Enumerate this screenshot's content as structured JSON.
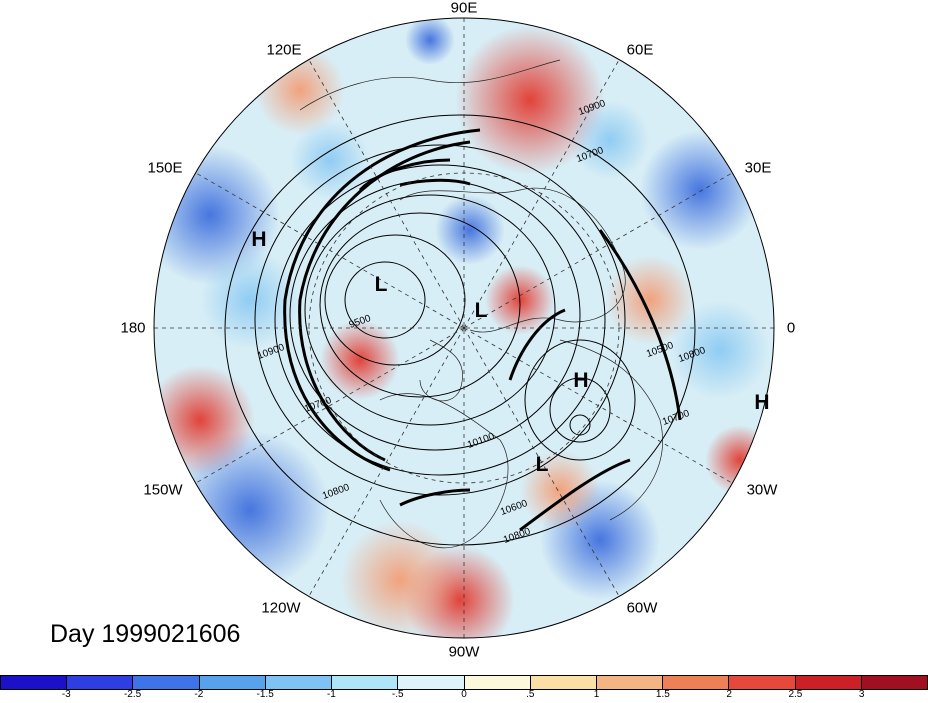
{
  "title": "Day 1999021606",
  "longitude_labels": [
    {
      "text": "90E",
      "lon": 90
    },
    {
      "text": "60E",
      "lon": 60
    },
    {
      "text": "30E",
      "lon": 30
    },
    {
      "text": "0",
      "lon": 0
    },
    {
      "text": "30W",
      "lon": -30
    },
    {
      "text": "60W",
      "lon": -60
    },
    {
      "text": "90W",
      "lon": -90
    },
    {
      "text": "120W",
      "lon": -120
    },
    {
      "text": "150W",
      "lon": -150
    },
    {
      "text": "180",
      "lon": 180
    },
    {
      "text": "150E",
      "lon": 150
    },
    {
      "text": "120E",
      "lon": 120
    }
  ],
  "pressure_systems": [
    {
      "type": "H",
      "name": "high-150e"
    },
    {
      "type": "L",
      "name": "low-siberia"
    },
    {
      "type": "L",
      "name": "low-pole"
    },
    {
      "type": "H",
      "name": "high-atlantic"
    },
    {
      "type": "L",
      "name": "low-labrador"
    },
    {
      "type": "H",
      "name": "high-east-atlantic"
    }
  ],
  "contour_labels": [
    "10900",
    "10700",
    "10500",
    "10800",
    "10700",
    "9500",
    "10900",
    "10100",
    "10600",
    "10800",
    "10800",
    "10700"
  ],
  "colorbar": {
    "colors": [
      "#1c10c8",
      "#2e3ee0",
      "#3f74e8",
      "#58a2ec",
      "#7ec3f4",
      "#aee6f8",
      "#dcf4fa",
      "#fcf8dc",
      "#fae0a4",
      "#f4b484",
      "#ee8058",
      "#e6483c",
      "#cc2028",
      "#a01020"
    ],
    "tick_labels": [
      "-3",
      "-2.5",
      "-2",
      "-1.5",
      "-1",
      "-.5",
      "0",
      ".5",
      "1",
      "1.5",
      "2",
      "2.5",
      "3"
    ]
  },
  "colors": {
    "positive": "#e24236",
    "negative": "#3d78e0",
    "neutral": "#f4f8f4"
  }
}
